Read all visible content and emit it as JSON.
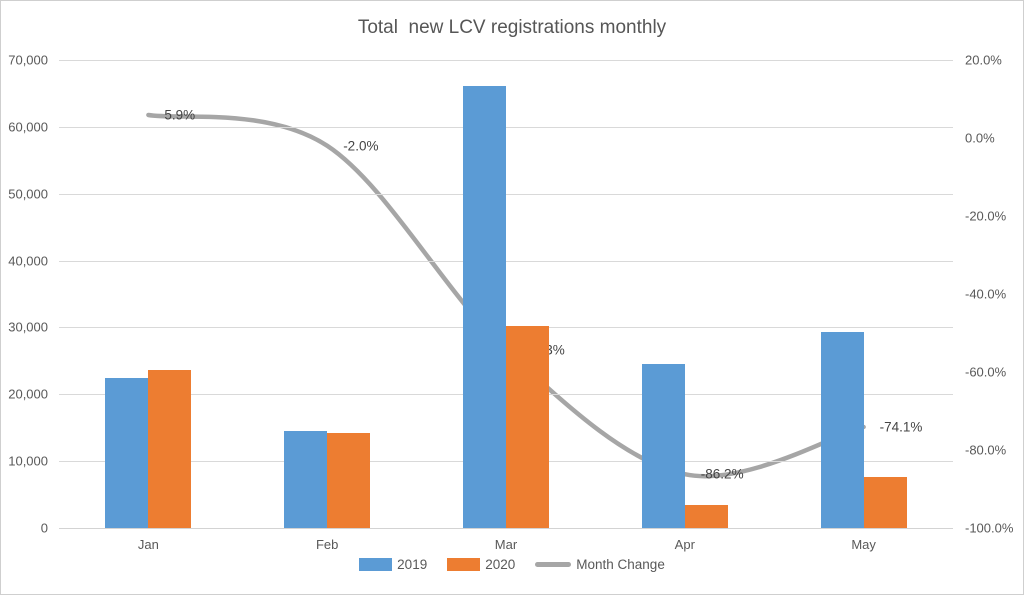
{
  "chart_data": {
    "type": "combo",
    "title": "Total  new LCV registrations monthly",
    "categories": [
      "Jan",
      "Feb",
      "Mar",
      "Apr",
      "May"
    ],
    "bar_series": [
      {
        "name": "2019",
        "color": "#5B9BD5",
        "values": [
          22400,
          14500,
          66100,
          24600,
          29300
        ]
      },
      {
        "name": "2020",
        "color": "#ED7D31",
        "values": [
          23600,
          14200,
          30200,
          3400,
          7600
        ]
      }
    ],
    "line_series": {
      "name": "Month Change",
      "color": "#A6A6A6",
      "values": [
        5.9,
        -2.0,
        -54.3,
        -86.2,
        -74.1
      ],
      "labels": [
        "5.9%",
        "-2.0%",
        "-54.3%",
        "-86.2%",
        "-74.1%"
      ]
    },
    "left_axis": {
      "min": 0,
      "max": 70000,
      "step": 10000,
      "tick_labels": [
        "70,000",
        "60,000",
        "50,000",
        "40,000",
        "30,000",
        "20,000",
        "10,000",
        "0"
      ]
    },
    "right_axis": {
      "min": -100,
      "max": 20,
      "step": 20,
      "tick_labels": [
        "20.0%",
        "0.0%",
        "-20.0%",
        "-40.0%",
        "-60.0%",
        "-80.0%",
        "-100.0%"
      ]
    },
    "legend": [
      {
        "label": "2019",
        "color": "#5B9BD5",
        "type": "bar"
      },
      {
        "label": "2020",
        "color": "#ED7D31",
        "type": "bar"
      },
      {
        "label": "Month Change",
        "color": "#A6A6A6",
        "type": "line"
      }
    ],
    "grid": true,
    "legend_position": "bottom"
  }
}
